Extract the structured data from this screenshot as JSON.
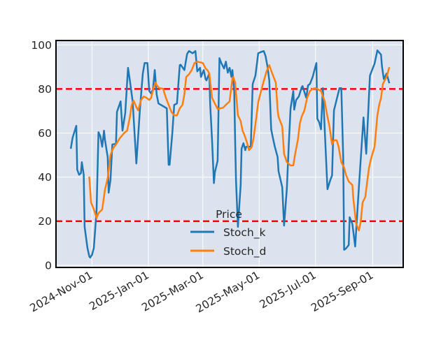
{
  "chart_data": {
    "type": "line",
    "title": "",
    "xlabel": "",
    "ylabel": "",
    "xlim": [
      "2024-09-23",
      "2025-10-04"
    ],
    "ylim": [
      -1,
      102
    ],
    "grid": true,
    "background_color": "#dde3ee",
    "x_ticks": [
      "2024-11-01",
      "2025-01-01",
      "2025-03-01",
      "2025-05-01",
      "2025-07-01",
      "2025-09-01"
    ],
    "x_tick_labels": [
      "2024-Nov-01",
      "2025-Jan-01",
      "2025-Mar-01",
      "2025-May-01",
      "2025-Jul-01",
      "2025-Sep-01"
    ],
    "y_ticks": [
      0,
      20,
      40,
      60,
      80,
      100
    ],
    "y_tick_labels": [
      "0",
      "20",
      "40",
      "60",
      "80",
      "100"
    ],
    "hlines": [
      {
        "y": 80,
        "color": "#ff0000",
        "style": "dashed"
      },
      {
        "y": 20,
        "color": "#ff0000",
        "style": "dashed"
      }
    ],
    "legend": {
      "title": "Price",
      "placement": "lower-center"
    },
    "series": [
      {
        "name": "Stoch_k",
        "color": "#1f77b4",
        "points": [
          [
            "2024-10-09",
            52.9
          ],
          [
            "2024-10-11",
            57.9
          ],
          [
            "2024-10-15",
            63.3
          ],
          [
            "2024-10-16",
            43.4
          ],
          [
            "2024-10-18",
            41.1
          ],
          [
            "2024-10-20",
            41.8
          ],
          [
            "2024-10-21",
            46.8
          ],
          [
            "2024-10-23",
            41.1
          ],
          [
            "2024-10-24",
            17.4
          ],
          [
            "2024-10-27",
            7.9
          ],
          [
            "2024-10-29",
            4.1
          ],
          [
            "2024-10-30",
            3.5
          ],
          [
            "2024-11-01",
            4.7
          ],
          [
            "2024-11-03",
            7.9
          ],
          [
            "2024-11-06",
            25.3
          ],
          [
            "2024-11-08",
            60.4
          ],
          [
            "2024-11-10",
            58.6
          ],
          [
            "2024-11-12",
            53.8
          ],
          [
            "2024-11-14",
            61.1
          ],
          [
            "2024-11-15",
            57
          ],
          [
            "2024-11-18",
            49
          ],
          [
            "2024-11-19",
            32.9
          ],
          [
            "2024-11-21",
            38.6
          ],
          [
            "2024-11-23",
            54.8
          ],
          [
            "2024-11-27",
            55.1
          ],
          [
            "2024-11-28",
            69.6
          ],
          [
            "2024-12-02",
            74.4
          ],
          [
            "2024-12-04",
            61.1
          ],
          [
            "2024-12-07",
            69
          ],
          [
            "2024-12-10",
            89.6
          ],
          [
            "2024-12-12",
            83.9
          ],
          [
            "2024-12-15",
            74.4
          ],
          [
            "2024-12-19",
            46.2
          ],
          [
            "2024-12-23",
            71.2
          ],
          [
            "2024-12-26",
            87
          ],
          [
            "2024-12-28",
            91.8
          ],
          [
            "2024-12-31",
            91.8
          ],
          [
            "2025-01-02",
            79.1
          ],
          [
            "2025-01-04",
            78
          ],
          [
            "2025-01-06",
            79.8
          ],
          [
            "2025-01-08",
            88.6
          ],
          [
            "2025-01-10",
            77.5
          ],
          [
            "2025-01-12",
            73.4
          ],
          [
            "2025-01-17",
            72.2
          ],
          [
            "2025-01-21",
            71.2
          ],
          [
            "2025-01-23",
            45.6
          ],
          [
            "2025-01-24",
            45.6
          ],
          [
            "2025-01-27",
            60.1
          ],
          [
            "2025-01-29",
            72.8
          ],
          [
            "2025-02-01",
            73.4
          ],
          [
            "2025-02-04",
            90.8
          ],
          [
            "2025-02-05",
            91
          ],
          [
            "2025-02-09",
            88.6
          ],
          [
            "2025-02-12",
            95.9
          ],
          [
            "2025-02-14",
            97.2
          ],
          [
            "2025-02-18",
            96.2
          ],
          [
            "2025-02-21",
            97.2
          ],
          [
            "2025-02-23",
            88
          ],
          [
            "2025-02-26",
            89.6
          ],
          [
            "2025-02-27",
            85.5
          ],
          [
            "2025-03-02",
            88.6
          ],
          [
            "2025-03-04",
            84.5
          ],
          [
            "2025-03-05",
            83.9
          ],
          [
            "2025-03-08",
            87
          ],
          [
            "2025-03-09",
            72.8
          ],
          [
            "2025-03-11",
            57
          ],
          [
            "2025-03-13",
            37.3
          ],
          [
            "2025-03-14",
            42.1
          ],
          [
            "2025-03-17",
            47.5
          ],
          [
            "2025-03-19",
            94
          ],
          [
            "2025-03-21",
            91.8
          ],
          [
            "2025-03-24",
            89.3
          ],
          [
            "2025-03-26",
            92.4
          ],
          [
            "2025-03-28",
            87.4
          ],
          [
            "2025-03-30",
            89.6
          ],
          [
            "2025-04-01",
            85.5
          ],
          [
            "2025-04-02",
            88.6
          ],
          [
            "2025-04-04",
            79.1
          ],
          [
            "2025-04-05",
            57
          ],
          [
            "2025-04-06",
            38
          ],
          [
            "2025-04-08",
            17.4
          ],
          [
            "2025-04-11",
            36.4
          ],
          [
            "2025-04-12",
            52.9
          ],
          [
            "2025-04-14",
            55.4
          ],
          [
            "2025-04-16",
            52.2
          ],
          [
            "2025-04-17",
            53.8
          ],
          [
            "2025-04-22",
            53.8
          ],
          [
            "2025-04-24",
            82.3
          ],
          [
            "2025-04-27",
            86.1
          ],
          [
            "2025-04-30",
            96.2
          ],
          [
            "2025-05-03",
            96.8
          ],
          [
            "2025-05-06",
            97.2
          ],
          [
            "2025-05-08",
            94.9
          ],
          [
            "2025-05-10",
            90.2
          ],
          [
            "2025-05-12",
            83.9
          ],
          [
            "2025-05-14",
            61.7
          ],
          [
            "2025-05-16",
            57.6
          ],
          [
            "2025-05-18",
            53.8
          ],
          [
            "2025-05-21",
            49.1
          ],
          [
            "2025-05-22",
            42.7
          ],
          [
            "2025-05-26",
            35.4
          ],
          [
            "2025-05-28",
            18
          ],
          [
            "2025-05-31",
            34.8
          ],
          [
            "2025-06-02",
            53.8
          ],
          [
            "2025-06-04",
            71.2
          ],
          [
            "2025-06-07",
            79.1
          ],
          [
            "2025-06-08",
            70.6
          ],
          [
            "2025-06-10",
            75
          ],
          [
            "2025-06-13",
            76.6
          ],
          [
            "2025-06-16",
            80.7
          ],
          [
            "2025-06-17",
            81.3
          ],
          [
            "2025-06-21",
            76
          ],
          [
            "2025-06-23",
            81.7
          ],
          [
            "2025-06-25",
            82.3
          ],
          [
            "2025-06-28",
            85.5
          ],
          [
            "2025-07-02",
            91.8
          ],
          [
            "2025-07-03",
            66.5
          ],
          [
            "2025-07-05",
            64.9
          ],
          [
            "2025-07-07",
            61.7
          ],
          [
            "2025-07-09",
            80.4
          ],
          [
            "2025-07-14",
            34.5
          ],
          [
            "2025-07-17",
            38.6
          ],
          [
            "2025-07-19",
            40.8
          ],
          [
            "2025-07-21",
            70.3
          ],
          [
            "2025-07-27",
            80.4
          ],
          [
            "2025-07-29",
            80.4
          ],
          [
            "2025-07-31",
            49
          ],
          [
            "2025-08-01",
            7
          ],
          [
            "2025-08-03",
            7.6
          ],
          [
            "2025-08-06",
            9.2
          ],
          [
            "2025-08-07",
            21.8
          ],
          [
            "2025-08-10",
            18.7
          ],
          [
            "2025-08-13",
            8.5
          ],
          [
            "2025-08-17",
            35.4
          ],
          [
            "2025-08-22",
            67.1
          ],
          [
            "2025-08-25",
            50.6
          ],
          [
            "2025-08-29",
            86.1
          ],
          [
            "2025-09-03",
            91.5
          ],
          [
            "2025-09-06",
            97.5
          ],
          [
            "2025-09-10",
            95.6
          ],
          [
            "2025-09-11",
            90.2
          ],
          [
            "2025-09-13",
            84.5
          ],
          [
            "2025-09-16",
            87
          ],
          [
            "2025-09-19",
            82.6
          ]
        ]
      },
      {
        "name": "Stoch_d",
        "color": "#ff7f0e",
        "points": [
          [
            "2024-10-29",
            40.2
          ],
          [
            "2024-10-31",
            28.5
          ],
          [
            "2024-11-03",
            25.3
          ],
          [
            "2024-11-06",
            21.5
          ],
          [
            "2024-11-08",
            23.7
          ],
          [
            "2024-11-12",
            25.3
          ],
          [
            "2024-11-15",
            34.2
          ],
          [
            "2024-11-18",
            39.6
          ],
          [
            "2024-11-21",
            50
          ],
          [
            "2024-11-24",
            53.2
          ],
          [
            "2024-11-27",
            54.8
          ],
          [
            "2024-12-01",
            57.6
          ],
          [
            "2024-12-06",
            60.1
          ],
          [
            "2024-12-09",
            61.1
          ],
          [
            "2024-12-12",
            67.1
          ],
          [
            "2024-12-14",
            72.8
          ],
          [
            "2024-12-16",
            74.7
          ],
          [
            "2024-12-19",
            71.8
          ],
          [
            "2024-12-21",
            70.3
          ],
          [
            "2024-12-24",
            75
          ],
          [
            "2024-12-27",
            76.6
          ],
          [
            "2024-12-30",
            76
          ],
          [
            "2025-01-02",
            75
          ],
          [
            "2025-01-04",
            76
          ],
          [
            "2025-01-07",
            81
          ],
          [
            "2025-01-09",
            82.9
          ],
          [
            "2025-01-10",
            81.7
          ],
          [
            "2025-01-13",
            80.4
          ],
          [
            "2025-01-17",
            80.1
          ],
          [
            "2025-01-20",
            76
          ],
          [
            "2025-01-23",
            72.8
          ],
          [
            "2025-01-26",
            69.6
          ],
          [
            "2025-01-29",
            68
          ],
          [
            "2025-02-01",
            68
          ],
          [
            "2025-02-04",
            71.2
          ],
          [
            "2025-02-07",
            72.8
          ],
          [
            "2025-02-09",
            77.5
          ],
          [
            "2025-02-11",
            85.5
          ],
          [
            "2025-02-14",
            86.7
          ],
          [
            "2025-02-17",
            88.6
          ],
          [
            "2025-02-20",
            91.8
          ],
          [
            "2025-02-23",
            92.4
          ],
          [
            "2025-02-26",
            92.1
          ],
          [
            "2025-03-01",
            91.8
          ],
          [
            "2025-03-04",
            89.3
          ],
          [
            "2025-03-06",
            88.6
          ],
          [
            "2025-03-08",
            87
          ],
          [
            "2025-03-11",
            76
          ],
          [
            "2025-03-14",
            73.4
          ],
          [
            "2025-03-17",
            70.9
          ],
          [
            "2025-03-23",
            71.5
          ],
          [
            "2025-03-26",
            72.8
          ],
          [
            "2025-03-30",
            74.4
          ],
          [
            "2025-04-02",
            84.8
          ],
          [
            "2025-04-03",
            85.5
          ],
          [
            "2025-04-05",
            82.9
          ],
          [
            "2025-04-08",
            68
          ],
          [
            "2025-04-11",
            65.5
          ],
          [
            "2025-04-13",
            61.1
          ],
          [
            "2025-04-15",
            59.2
          ],
          [
            "2025-04-18",
            55.4
          ],
          [
            "2025-04-20",
            52.2
          ],
          [
            "2025-04-23",
            53.8
          ],
          [
            "2025-04-25",
            57.9
          ],
          [
            "2025-04-28",
            67.4
          ],
          [
            "2025-04-30",
            74
          ],
          [
            "2025-05-03",
            79.1
          ],
          [
            "2025-05-06",
            83.6
          ],
          [
            "2025-05-09",
            88
          ],
          [
            "2025-05-12",
            90.8
          ],
          [
            "2025-05-13",
            89.6
          ],
          [
            "2025-05-16",
            86.1
          ],
          [
            "2025-05-19",
            82.9
          ],
          [
            "2025-05-21",
            70.6
          ],
          [
            "2025-05-22",
            67.4
          ],
          [
            "2025-05-26",
            63
          ],
          [
            "2025-05-28",
            50.6
          ],
          [
            "2025-05-31",
            46.8
          ],
          [
            "2025-06-04",
            45.3
          ],
          [
            "2025-06-07",
            45.3
          ],
          [
            "2025-06-09",
            50.6
          ],
          [
            "2025-06-12",
            57
          ],
          [
            "2025-06-14",
            64.2
          ],
          [
            "2025-06-16",
            67.4
          ],
          [
            "2025-06-19",
            70.3
          ],
          [
            "2025-06-22",
            76
          ],
          [
            "2025-06-25",
            79.1
          ],
          [
            "2025-06-28",
            80.1
          ],
          [
            "2025-07-01",
            80.4
          ],
          [
            "2025-07-04",
            79.8
          ],
          [
            "2025-07-07",
            79.1
          ],
          [
            "2025-07-11",
            74.4
          ],
          [
            "2025-07-13",
            69.6
          ],
          [
            "2025-07-16",
            63.3
          ],
          [
            "2025-07-19",
            54.8
          ],
          [
            "2025-07-21",
            56.7
          ],
          [
            "2025-07-24",
            56.7
          ],
          [
            "2025-07-26",
            53.8
          ],
          [
            "2025-07-29",
            46.8
          ],
          [
            "2025-08-01",
            44.3
          ],
          [
            "2025-08-03",
            41.1
          ],
          [
            "2025-08-06",
            38
          ],
          [
            "2025-08-10",
            36.4
          ],
          [
            "2025-08-11",
            30.1
          ],
          [
            "2025-08-14",
            19
          ],
          [
            "2025-08-17",
            15.8
          ],
          [
            "2025-08-19",
            19.6
          ],
          [
            "2025-08-21",
            28.5
          ],
          [
            "2025-08-24",
            31
          ],
          [
            "2025-08-26",
            38
          ],
          [
            "2025-08-28",
            44.3
          ],
          [
            "2025-08-30",
            48.1
          ],
          [
            "2025-09-03",
            53.8
          ],
          [
            "2025-09-06",
            68
          ],
          [
            "2025-09-08",
            72.8
          ],
          [
            "2025-09-10",
            75.9
          ],
          [
            "2025-09-12",
            82.3
          ],
          [
            "2025-09-14",
            83.9
          ],
          [
            "2025-09-16",
            85.5
          ],
          [
            "2025-09-19",
            89.9
          ]
        ]
      }
    ]
  }
}
